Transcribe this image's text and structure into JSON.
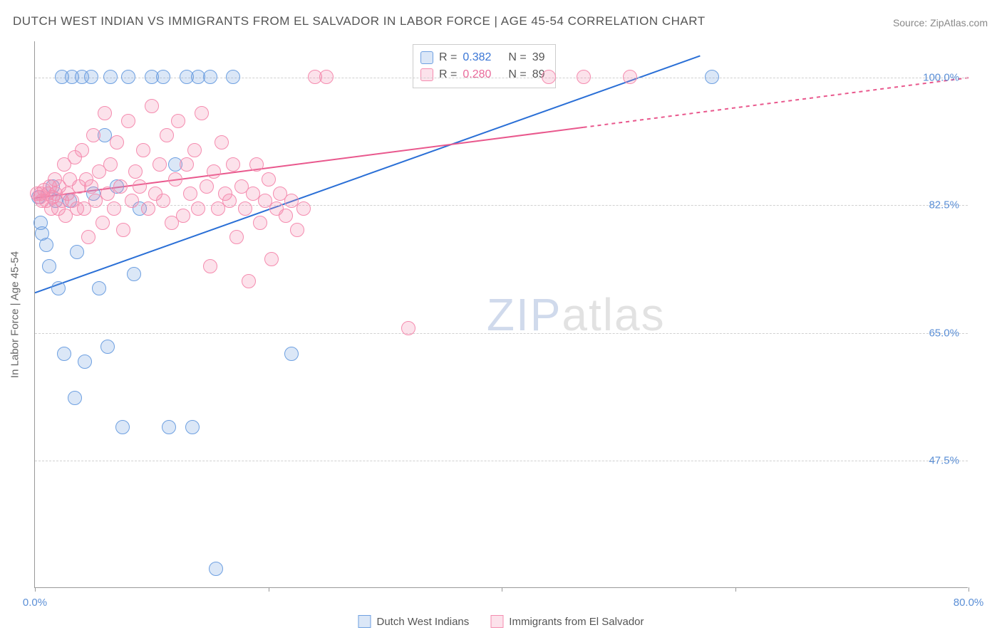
{
  "title": "DUTCH WEST INDIAN VS IMMIGRANTS FROM EL SALVADOR IN LABOR FORCE | AGE 45-54 CORRELATION CHART",
  "source": "Source: ZipAtlas.com",
  "y_axis_label": "In Labor Force | Age 45-54",
  "watermark_a": "ZIP",
  "watermark_b": "atlas",
  "chart": {
    "type": "scatter",
    "xlim": [
      0,
      80
    ],
    "ylim": [
      30,
      105
    ],
    "x_ticks": [
      0,
      20,
      40,
      60,
      80
    ],
    "x_tick_labels": [
      "0.0%",
      "",
      "",
      "",
      "80.0%"
    ],
    "y_gridlines": [
      47.5,
      65.0,
      82.5,
      100.0
    ],
    "y_tick_labels": [
      "47.5%",
      "65.0%",
      "82.5%",
      "100.0%"
    ],
    "background_color": "#ffffff",
    "grid_color": "#d0d0d0",
    "axis_color": "#999999",
    "label_fontsize": 15,
    "title_fontsize": 17,
    "marker_radius": 10,
    "marker_border_width": 1.5,
    "series": [
      {
        "name": "Dutch West Indians",
        "fill_color": "rgba(110,160,225,0.25)",
        "stroke_color": "#6ea0e1",
        "trend_color": "#2a6fd6",
        "trend_width": 2,
        "trend_dash_after_x": 80,
        "trend": {
          "x1": 0,
          "y1": 70.5,
          "x2": 57,
          "y2": 103
        },
        "r_value": "0.382",
        "n_value": "39",
        "points": [
          [
            0.3,
            83.5
          ],
          [
            0.5,
            80
          ],
          [
            0.6,
            78.5
          ],
          [
            1.0,
            77
          ],
          [
            1.2,
            74
          ],
          [
            1.5,
            85
          ],
          [
            1.8,
            83
          ],
          [
            2.0,
            71
          ],
          [
            2.3,
            100
          ],
          [
            2.5,
            62
          ],
          [
            3.0,
            83
          ],
          [
            3.2,
            100
          ],
          [
            3.4,
            56
          ],
          [
            3.6,
            76
          ],
          [
            4.0,
            100
          ],
          [
            4.3,
            61
          ],
          [
            4.8,
            100
          ],
          [
            5.0,
            84
          ],
          [
            5.5,
            71
          ],
          [
            6.0,
            92
          ],
          [
            6.2,
            63
          ],
          [
            6.5,
            100
          ],
          [
            7.0,
            85
          ],
          [
            7.5,
            52
          ],
          [
            8.0,
            100
          ],
          [
            8.5,
            73
          ],
          [
            9.0,
            82
          ],
          [
            10,
            100
          ],
          [
            11,
            100
          ],
          [
            11.5,
            52
          ],
          [
            12,
            88
          ],
          [
            13,
            100
          ],
          [
            13.5,
            52
          ],
          [
            14,
            100
          ],
          [
            15,
            100
          ],
          [
            15.5,
            32.5
          ],
          [
            17,
            100
          ],
          [
            22,
            62
          ],
          [
            58,
            100
          ]
        ]
      },
      {
        "name": "Immigrants from El Salvador",
        "fill_color": "rgba(245,140,175,0.25)",
        "stroke_color": "#f58caf",
        "trend_color": "#e9588d",
        "trend_width": 2,
        "trend_dash_after_x": 47,
        "trend": {
          "x1": 0,
          "y1": 83.5,
          "x2": 80,
          "y2": 100
        },
        "r_value": "0.280",
        "n_value": "89",
        "points": [
          [
            0.2,
            84
          ],
          [
            0.4,
            83.5
          ],
          [
            0.5,
            84
          ],
          [
            0.6,
            83
          ],
          [
            0.8,
            84.5
          ],
          [
            1.0,
            83
          ],
          [
            1.1,
            84
          ],
          [
            1.3,
            85
          ],
          [
            1.4,
            82
          ],
          [
            1.5,
            83.5
          ],
          [
            1.7,
            86
          ],
          [
            1.8,
            84
          ],
          [
            2.0,
            82
          ],
          [
            2.1,
            85
          ],
          [
            2.3,
            83
          ],
          [
            2.5,
            88
          ],
          [
            2.6,
            81
          ],
          [
            2.8,
            84
          ],
          [
            3.0,
            86
          ],
          [
            3.2,
            83
          ],
          [
            3.4,
            89
          ],
          [
            3.6,
            82
          ],
          [
            3.8,
            85
          ],
          [
            4.0,
            90
          ],
          [
            4.2,
            82
          ],
          [
            4.4,
            86
          ],
          [
            4.6,
            78
          ],
          [
            4.8,
            85
          ],
          [
            5.0,
            92
          ],
          [
            5.2,
            83
          ],
          [
            5.5,
            87
          ],
          [
            5.8,
            80
          ],
          [
            6.0,
            95
          ],
          [
            6.2,
            84
          ],
          [
            6.5,
            88
          ],
          [
            6.8,
            82
          ],
          [
            7.0,
            91
          ],
          [
            7.3,
            85
          ],
          [
            7.6,
            79
          ],
          [
            8.0,
            94
          ],
          [
            8.3,
            83
          ],
          [
            8.6,
            87
          ],
          [
            9.0,
            85
          ],
          [
            9.3,
            90
          ],
          [
            9.7,
            82
          ],
          [
            10,
            96
          ],
          [
            10.3,
            84
          ],
          [
            10.7,
            88
          ],
          [
            11,
            83
          ],
          [
            11.3,
            92
          ],
          [
            11.7,
            80
          ],
          [
            12,
            86
          ],
          [
            12.3,
            94
          ],
          [
            12.7,
            81
          ],
          [
            13,
            88
          ],
          [
            13.3,
            84
          ],
          [
            13.7,
            90
          ],
          [
            14,
            82
          ],
          [
            14.3,
            95
          ],
          [
            14.7,
            85
          ],
          [
            15,
            74
          ],
          [
            15.3,
            87
          ],
          [
            15.7,
            82
          ],
          [
            16,
            91
          ],
          [
            16.3,
            84
          ],
          [
            16.7,
            83
          ],
          [
            17,
            88
          ],
          [
            17.3,
            78
          ],
          [
            17.7,
            85
          ],
          [
            18,
            82
          ],
          [
            18.3,
            72
          ],
          [
            18.7,
            84
          ],
          [
            19,
            88
          ],
          [
            19.3,
            80
          ],
          [
            19.7,
            83
          ],
          [
            20,
            86
          ],
          [
            20.3,
            75
          ],
          [
            20.7,
            82
          ],
          [
            21,
            84
          ],
          [
            21.5,
            81
          ],
          [
            22,
            83
          ],
          [
            22.5,
            79
          ],
          [
            23,
            82
          ],
          [
            24,
            100
          ],
          [
            25,
            100
          ],
          [
            32,
            65.5
          ],
          [
            44,
            100
          ],
          [
            47,
            100
          ],
          [
            51,
            100
          ]
        ]
      }
    ]
  },
  "legend": {
    "r_label": "R =",
    "n_label": "N ="
  },
  "bottom_legend": {
    "items": [
      "Dutch West Indians",
      "Immigrants from El Salvador"
    ]
  }
}
